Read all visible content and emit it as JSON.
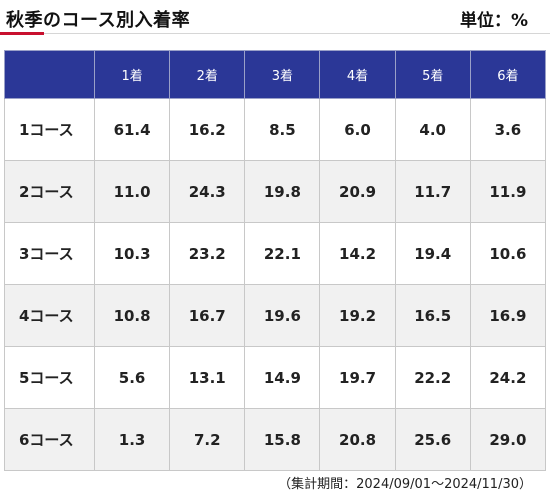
{
  "header": {
    "title": "秋季のコース別入着率",
    "unit": "単位：%"
  },
  "table": {
    "columns": [
      "",
      "1着",
      "2着",
      "3着",
      "4着",
      "5着",
      "6着"
    ],
    "rows": [
      {
        "label": "1コース",
        "values": [
          "61.4",
          "16.2",
          "8.5",
          "6.0",
          "4.0",
          "3.6"
        ]
      },
      {
        "label": "2コース",
        "values": [
          "11.0",
          "24.3",
          "19.8",
          "20.9",
          "11.7",
          "11.9"
        ]
      },
      {
        "label": "3コース",
        "values": [
          "10.3",
          "23.2",
          "22.1",
          "14.2",
          "19.4",
          "10.6"
        ]
      },
      {
        "label": "4コース",
        "values": [
          "10.8",
          "16.7",
          "19.6",
          "19.2",
          "16.5",
          "16.9"
        ]
      },
      {
        "label": "5コース",
        "values": [
          "5.6",
          "13.1",
          "14.9",
          "19.7",
          "22.2",
          "24.2"
        ]
      },
      {
        "label": "6コース",
        "values": [
          "1.3",
          "7.2",
          "15.8",
          "20.8",
          "25.6",
          "29.0"
        ]
      }
    ]
  },
  "footnote": "（集計期間：2024/09/01〜2024/11/30）",
  "colors": {
    "header_bg": "#2b3797",
    "accent": "#c8102e",
    "alt_row": "#f1f1f1"
  }
}
